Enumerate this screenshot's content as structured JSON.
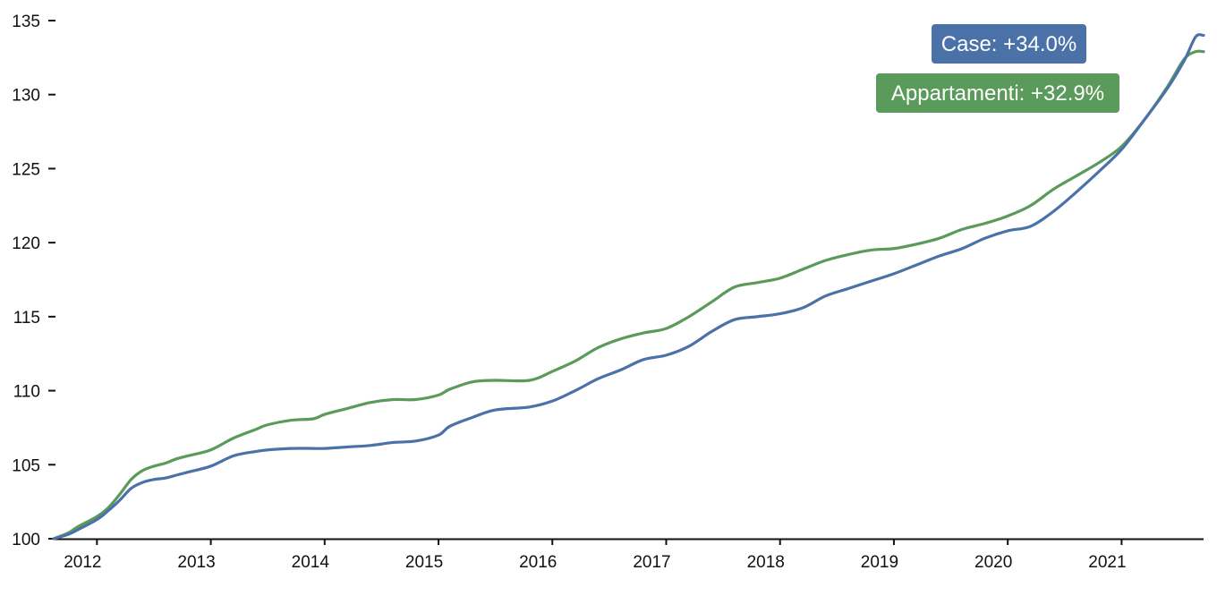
{
  "chart_data": {
    "type": "line",
    "title": "",
    "xlabel": "",
    "ylabel": "",
    "xlim": [
      2011.62,
      2021.72
    ],
    "ylim": [
      100,
      135
    ],
    "yticks": [
      100,
      105,
      110,
      115,
      120,
      125,
      130,
      135
    ],
    "xticks": [
      2012,
      2013,
      2014,
      2015,
      2016,
      2017,
      2018,
      2019,
      2020,
      2021
    ],
    "xtick_labels": [
      "2012",
      "2013",
      "2014",
      "2015",
      "2016",
      "2017",
      "2018",
      "2019",
      "2020",
      "2021"
    ],
    "grid": false,
    "series": [
      {
        "name": "Appartamenti",
        "color": "#5a9a5a",
        "label": "Appartamenti: +32.9%",
        "x": [
          2011.62,
          2011.75,
          2011.83,
          2012.0,
          2012.1,
          2012.2,
          2012.3,
          2012.4,
          2012.5,
          2012.6,
          2012.7,
          2012.8,
          2013.0,
          2013.2,
          2013.4,
          2013.5,
          2013.7,
          2013.9,
          2014.0,
          2014.2,
          2014.4,
          2014.6,
          2014.8,
          2015.0,
          2015.1,
          2015.3,
          2015.5,
          2015.8,
          2016.0,
          2016.2,
          2016.4,
          2016.6,
          2016.8,
          2017.0,
          2017.2,
          2017.4,
          2017.6,
          2017.8,
          2018.0,
          2018.2,
          2018.4,
          2018.6,
          2018.8,
          2019.0,
          2019.2,
          2019.4,
          2019.6,
          2019.8,
          2020.0,
          2020.2,
          2020.4,
          2020.6,
          2020.8,
          2021.0,
          2021.2,
          2021.4,
          2021.55,
          2021.65,
          2021.72
        ],
        "y": [
          100.0,
          100.4,
          100.8,
          101.5,
          102.1,
          103.0,
          104.0,
          104.6,
          104.9,
          105.1,
          105.4,
          105.6,
          106.0,
          106.8,
          107.4,
          107.7,
          108.0,
          108.1,
          108.4,
          108.8,
          109.2,
          109.4,
          109.4,
          109.7,
          110.1,
          110.6,
          110.7,
          110.7,
          111.3,
          112.0,
          112.9,
          113.5,
          113.9,
          114.2,
          115.0,
          116.0,
          117.0,
          117.3,
          117.6,
          118.2,
          118.8,
          119.2,
          119.5,
          119.6,
          119.9,
          120.3,
          120.9,
          121.3,
          121.8,
          122.5,
          123.6,
          124.5,
          125.4,
          126.5,
          128.3,
          130.5,
          132.4,
          132.9,
          132.9
        ]
      },
      {
        "name": "Case",
        "color": "#4a72a8",
        "label": "Case: +34.0%",
        "x": [
          2011.62,
          2011.75,
          2011.83,
          2012.0,
          2012.1,
          2012.2,
          2012.3,
          2012.4,
          2012.5,
          2012.6,
          2012.7,
          2012.8,
          2013.0,
          2013.2,
          2013.4,
          2013.5,
          2013.7,
          2013.9,
          2014.0,
          2014.2,
          2014.4,
          2014.6,
          2014.8,
          2015.0,
          2015.1,
          2015.3,
          2015.5,
          2015.8,
          2016.0,
          2016.2,
          2016.4,
          2016.6,
          2016.8,
          2017.0,
          2017.2,
          2017.4,
          2017.6,
          2017.8,
          2018.0,
          2018.2,
          2018.4,
          2018.6,
          2018.8,
          2019.0,
          2019.2,
          2019.4,
          2019.6,
          2019.8,
          2020.0,
          2020.2,
          2020.4,
          2020.6,
          2020.8,
          2021.0,
          2021.2,
          2021.4,
          2021.55,
          2021.65,
          2021.72
        ],
        "y": [
          100.0,
          100.3,
          100.6,
          101.3,
          101.9,
          102.6,
          103.4,
          103.8,
          104.0,
          104.1,
          104.3,
          104.5,
          104.9,
          105.6,
          105.9,
          106.0,
          106.1,
          106.1,
          106.1,
          106.2,
          106.3,
          106.5,
          106.6,
          107.0,
          107.6,
          108.2,
          108.7,
          108.9,
          109.3,
          110.0,
          110.8,
          111.4,
          112.1,
          112.4,
          113.0,
          114.0,
          114.8,
          115.0,
          115.2,
          115.6,
          116.4,
          116.9,
          117.4,
          117.9,
          118.5,
          119.1,
          119.6,
          120.3,
          120.8,
          121.1,
          122.1,
          123.4,
          124.8,
          126.3,
          128.3,
          130.4,
          132.3,
          133.9,
          134.0
        ]
      }
    ]
  }
}
